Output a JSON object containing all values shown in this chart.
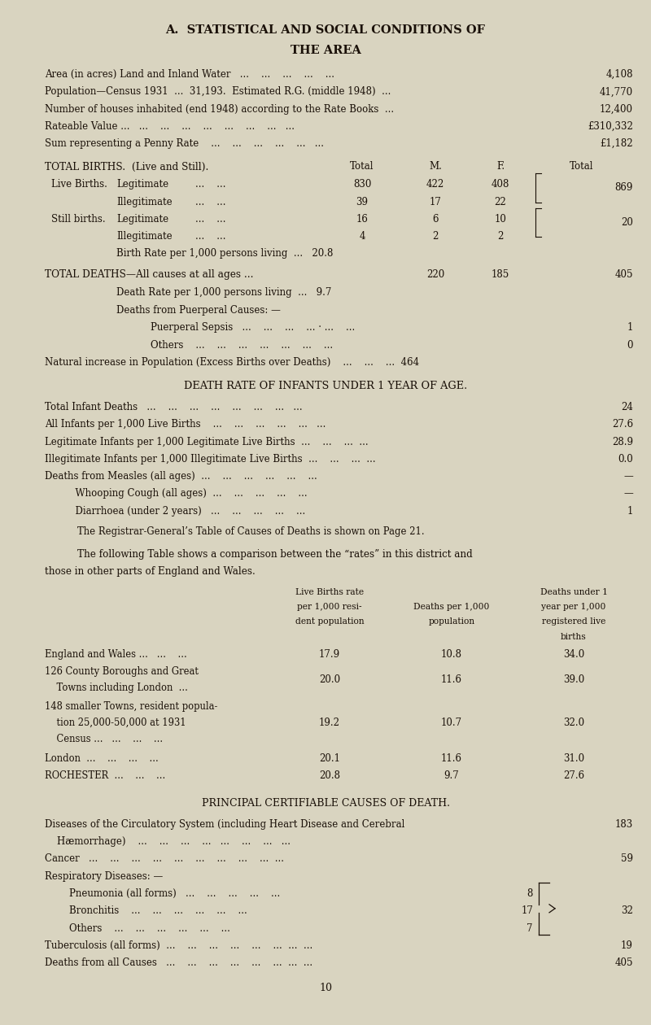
{
  "bg_color": "#d9d4c0",
  "text_color": "#1a1008",
  "title1": "A.  STATISTICAL AND SOCIAL CONDITIONS OF",
  "title2": "THE AREA",
  "lines_top": [
    {
      "label": "Area (in acres) Land and Inland Water   ...    ...    ...    ...    ...   ",
      "value": "4,108"
    },
    {
      "label": "Population—Census 1931  ...  31,193.  Estimated R.G. (middle 1948)  ...",
      "value": "41,770"
    },
    {
      "label": "Number of houses inhabited (end 1948) according to the Rate Books  ...",
      "value": "12,400"
    },
    {
      "label": "Rateable Value ...   ...    ...    ...    ...    ...    ...    ...   ...",
      "value": "£310,332"
    },
    {
      "label": "Sum representing a Penny Rate    ...    ...    ...    ...    ...   ...",
      "value": "£1,182"
    }
  ],
  "births_header": "TOTAL BIRTHS.  (Live and Still).",
  "births_cols": [
    "Total",
    "M.",
    "F.",
    "Total"
  ],
  "births_rows": [
    {
      "cat1": "Live Births.",
      "cat2": "Legitimate",
      "dots": "...    ...",
      "v1": "830",
      "v2": "422",
      "v3": "408",
      "bracket": "869",
      "bracket_rows": 2
    },
    {
      "cat1": "",
      "cat2": "Illegitimate",
      "dots": "...    ...",
      "v1": "39",
      "v2": "17",
      "v3": "22",
      "bracket": null,
      "bracket_rows": 0
    },
    {
      "cat1": "Still births.",
      "cat2": "Legitimate",
      "dots": "...    ...",
      "v1": "16",
      "v2": "6",
      "v3": "10",
      "bracket": "20",
      "bracket_rows": 2
    },
    {
      "cat1": "",
      "cat2": "Illegitimate",
      "dots": "...    ...",
      "v1": "4",
      "v2": "2",
      "v3": "2",
      "bracket": null,
      "bracket_rows": 0
    }
  ],
  "birth_rate_label": "Birth Rate per 1,000 persons living  ...   20.8",
  "deaths_header": "TOTAL DEATHS—All causes at all ages ...",
  "deaths_vals": [
    "220",
    "185",
    "405"
  ],
  "death_rate_label": "Death Rate per 1,000 persons living  ...   9.7",
  "puerperal_header": "Deaths from Puerperal Causes: —",
  "puerperal_rows": [
    {
      "label": "Puerperal Sepsis   ...    ...    ...    ... · ...    ...",
      "value": "1"
    },
    {
      "label": "Others    ...    ...    ...    ...    ...    ...    ...",
      "value": "0"
    }
  ],
  "natural_increase": "Natural increase in Population (Excess Births over Deaths)    ...    ...    ...  464",
  "infant_header": "DEATH RATE OF INFANTS UNDER 1 YEAR OF AGE.",
  "infant_rows": [
    {
      "label": "Total Infant Deaths   ...    ...    ...    ...    ...    ...    ...   ...",
      "value": "24"
    },
    {
      "label": "All Infants per 1,000 Live Births    ...    ...    ...    ...    ...   ...",
      "value": "27.6"
    },
    {
      "label": "Legitimate Infants per 1,000 Legitimate Live Births  ...    ...    ...  ...",
      "value": "28.9"
    },
    {
      "label": "Illegitimate Infants per 1,000 Illegitimate Live Births  ...    ...    ...  ...",
      "value": "0.0"
    },
    {
      "label": "Deaths from Measles (all ages)  ...    ...    ...    ...    ...    ...",
      "value": "—"
    },
    {
      "label": "          Whooping Cough (all ages)  ...    ...    ...    ...    ...",
      "value": "—"
    },
    {
      "label": "          Diarrhoea (under 2 years)   ...    ...    ...    ...    ...",
      "value": "1"
    }
  ],
  "registrar_note": "The Registrar-General’s Table of Causes of Deaths is shown on Page 21.",
  "comparison_intro1": "The following Table shows a comparison between the “rates” in this district and",
  "comparison_intro2": "those in other parts of England and Wales.",
  "table_col1_lines": [
    "Live Births rate",
    "per 1,000 resi-",
    "dent population"
  ],
  "table_col2_lines": [
    "Deaths per 1,000",
    "population"
  ],
  "table_col3_lines": [
    "Deaths under 1",
    "year per 1,000",
    "registered live",
    "births"
  ],
  "table_rows": [
    {
      "label": "England and Wales ...   ...    ...",
      "lines": 1,
      "v1": "17.9",
      "v2": "10.8",
      "v3": "34.0"
    },
    {
      "label": "126 County Boroughs and Great\n    Towns including London  ...",
      "lines": 2,
      "v1": "20.0",
      "v2": "11.6",
      "v3": "39.0"
    },
    {
      "label": "148 smaller Towns, resident popula-\n    tion 25,000-50,000 at 1931\n    Census ...   ...    ...    ...",
      "lines": 3,
      "v1": "19.2",
      "v2": "10.7",
      "v3": "32.0"
    },
    {
      "label": "London  ...    ...    ...    ...",
      "lines": 1,
      "v1": "20.1",
      "v2": "11.6",
      "v3": "31.0"
    },
    {
      "label": "ROCHESTER  ...    ...    ...",
      "lines": 1,
      "v1": "20.8",
      "v2": "9.7",
      "v3": "27.6"
    }
  ],
  "principal_header": "PRINCIPAL CERTIFIABLE CAUSES OF DEATH.",
  "principal_rows": [
    {
      "label": "Diseases of the Circulatory System (including Heart Disease and Cerebral\n    Hæmorrhage)    ...    ...    ...    ...   ...    ...    ...   ...",
      "value": "183",
      "subval": null
    },
    {
      "label": "Cancer   ...    ...    ...    ...    ...    ...    ...    ...    ...  ...",
      "value": "59",
      "subval": null
    },
    {
      "label": "Respiratory Diseases: —",
      "value": null,
      "subval": null
    },
    {
      "label": "        Pneumonia (all forms)   ...    ...    ...    ...    ...",
      "value": null,
      "subval": "8"
    },
    {
      "label": "        Bronchitis    ...    ...    ...    ...    ...    ...",
      "value": "32",
      "subval": "17"
    },
    {
      "label": "        Others    ...    ...    ...    ...    ...    ...",
      "value": null,
      "subval": "7"
    },
    {
      "label": "Tuberculosis (all forms)  ...    ...    ...    ...    ...    ...  ...  ...",
      "value": "19",
      "subval": null
    },
    {
      "label": "Deaths from all Causes   ...    ...    ...    ...    ...    ...  ...  ...",
      "value": "405",
      "subval": null
    }
  ],
  "page_num": "10"
}
